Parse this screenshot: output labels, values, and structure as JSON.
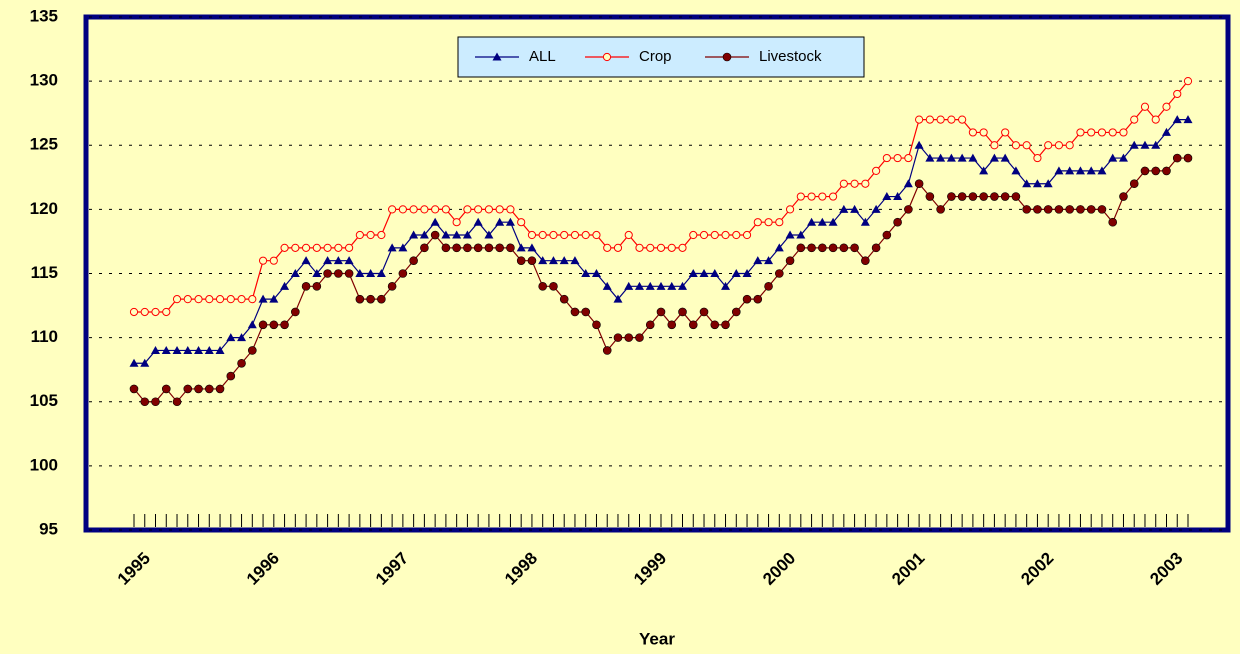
{
  "chart_data": {
    "type": "line",
    "x_label": "Year",
    "categories": [
      "1995",
      null,
      null,
      null,
      null,
      null,
      null,
      null,
      null,
      null,
      null,
      null,
      "1996",
      null,
      null,
      null,
      null,
      null,
      null,
      null,
      null,
      null,
      null,
      null,
      "1997",
      null,
      null,
      null,
      null,
      null,
      null,
      null,
      null,
      null,
      null,
      null,
      "1998",
      null,
      null,
      null,
      null,
      null,
      null,
      null,
      null,
      null,
      null,
      null,
      "1999",
      null,
      null,
      null,
      null,
      null,
      null,
      null,
      null,
      null,
      null,
      null,
      "2000",
      null,
      null,
      null,
      null,
      null,
      null,
      null,
      null,
      null,
      null,
      null,
      "2001",
      null,
      null,
      null,
      null,
      null,
      null,
      null,
      null,
      null,
      null,
      null,
      "2002",
      null,
      null,
      null,
      null,
      null,
      null,
      null,
      null,
      null,
      null,
      null,
      "2003",
      null,
      null
    ],
    "series": [
      {
        "name": "ALL",
        "color": "#000080",
        "marker": "triangle",
        "values": [
          108,
          108,
          109,
          109,
          109,
          109,
          109,
          109,
          109,
          110,
          110,
          111,
          113,
          113,
          114,
          115,
          116,
          115,
          116,
          116,
          116,
          115,
          115,
          115,
          117,
          117,
          118,
          118,
          119,
          118,
          118,
          118,
          119,
          118,
          119,
          119,
          117,
          117,
          116,
          116,
          116,
          116,
          115,
          115,
          114,
          113,
          114,
          114,
          114,
          114,
          114,
          114,
          115,
          115,
          115,
          114,
          115,
          115,
          116,
          116,
          117,
          118,
          118,
          119,
          119,
          119,
          120,
          120,
          119,
          120,
          121,
          121,
          122,
          125,
          124,
          124,
          124,
          124,
          124,
          123,
          124,
          124,
          123,
          122,
          122,
          122,
          123,
          123,
          123,
          123,
          123,
          124,
          124,
          125,
          125,
          125,
          126,
          127,
          127
        ]
      },
      {
        "name": "Crop",
        "color": "#ff0000",
        "marker": "open-circle",
        "values": [
          112,
          112,
          112,
          112,
          113,
          113,
          113,
          113,
          113,
          113,
          113,
          113,
          116,
          116,
          117,
          117,
          117,
          117,
          117,
          117,
          117,
          118,
          118,
          118,
          120,
          120,
          120,
          120,
          120,
          120,
          119,
          120,
          120,
          120,
          120,
          120,
          119,
          118,
          118,
          118,
          118,
          118,
          118,
          118,
          117,
          117,
          118,
          117,
          117,
          117,
          117,
          117,
          118,
          118,
          118,
          118,
          118,
          118,
          119,
          119,
          119,
          120,
          121,
          121,
          121,
          121,
          122,
          122,
          122,
          123,
          124,
          124,
          124,
          127,
          127,
          127,
          127,
          127,
          126,
          126,
          125,
          126,
          125,
          125,
          124,
          125,
          125,
          125,
          126,
          126,
          126,
          126,
          126,
          127,
          128,
          127,
          128,
          129,
          130
        ]
      },
      {
        "name": "Livestock",
        "color": "#800000",
        "marker": "circle",
        "values": [
          106,
          105,
          105,
          106,
          105,
          106,
          106,
          106,
          106,
          107,
          108,
          109,
          111,
          111,
          111,
          112,
          114,
          114,
          115,
          115,
          115,
          113,
          113,
          113,
          114,
          115,
          116,
          117,
          118,
          117,
          117,
          117,
          117,
          117,
          117,
          117,
          116,
          116,
          114,
          114,
          113,
          112,
          112,
          111,
          109,
          110,
          110,
          110,
          111,
          112,
          111,
          112,
          111,
          112,
          111,
          111,
          112,
          113,
          113,
          114,
          115,
          116,
          117,
          117,
          117,
          117,
          117,
          117,
          116,
          117,
          118,
          119,
          120,
          122,
          121,
          120,
          121,
          121,
          121,
          121,
          121,
          121,
          121,
          120,
          120,
          120,
          120,
          120,
          120,
          120,
          120,
          119,
          121,
          122,
          123,
          123,
          123,
          124,
          124
        ]
      }
    ],
    "ylim": [
      95,
      135
    ],
    "yticks": [
      95,
      100,
      105,
      110,
      115,
      120,
      125,
      130,
      135
    ],
    "grid": true,
    "legend": "top"
  }
}
